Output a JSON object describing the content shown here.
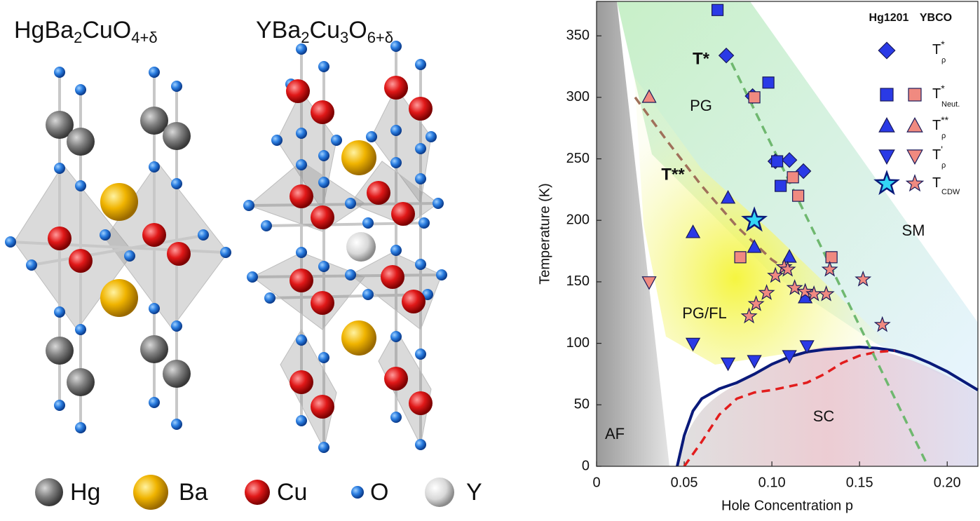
{
  "structures": {
    "formulas": [
      [
        "HgBa",
        "2",
        "CuO",
        "4+δ"
      ],
      [
        "YBa",
        "2",
        "Cu",
        "3",
        "O",
        "6+δ"
      ]
    ],
    "atoms": [
      "Hg",
      "Ba",
      "Cu",
      "O",
      "Y"
    ]
  },
  "chart_data": {
    "type": "scatter",
    "x_label": "Hole Concentration p",
    "y_label": "Temperature (K)",
    "xlim": [
      0,
      0.2175
    ],
    "ylim": [
      0,
      378
    ],
    "xticks": [
      0,
      0.05,
      {
        "value": 0.1,
        "label": "0.10"
      },
      0.15,
      {
        "value": 0.2,
        "label": "0.20"
      }
    ],
    "yticks": [
      0,
      50,
      100,
      150,
      200,
      250,
      300,
      350
    ],
    "samples": [
      {
        "name": "Hg1201",
        "color": "#1616d8"
      },
      {
        "name": "YBCO",
        "color": "#e21d1d"
      }
    ],
    "series": [
      {
        "name": {
          "main": "T",
          "sup": "*",
          "sub": "ρ"
        },
        "marker": "diamond",
        "points": [
          {
            "color": "#2a3ae6",
            "x": [
              0.074,
              0.089,
              0.102,
              0.11,
              0.118
            ],
            "values": [
              334,
              301,
              248,
              249,
              240
            ]
          }
        ]
      },
      {
        "name": {
          "main": "T",
          "sup": "*",
          "sub": "Neut."
        },
        "marker": "square",
        "points": [
          {
            "color": "#2a3ae6",
            "x": [
              0.069,
              0.098,
              0.103,
              0.105
            ],
            "values": [
              371,
              312,
              248,
              228
            ]
          },
          {
            "color": "#f08a80",
            "x": [
              0.082,
              0.09,
              0.112,
              0.115,
              0.134
            ],
            "values": [
              170,
              300,
              235,
              220,
              170
            ]
          }
        ]
      },
      {
        "name": {
          "main": "T",
          "sup": "**",
          "sub": "ρ"
        },
        "marker": "up",
        "points": [
          {
            "color": "#2a3ae6",
            "x": [
              0.055,
              0.075,
              0.09,
              0.11,
              0.119
            ],
            "values": [
              190,
              218,
              178,
              170,
              137
            ]
          },
          {
            "color": "#f08a80",
            "x": [
              0.03
            ],
            "values": [
              300
            ]
          }
        ]
      },
      {
        "name": {
          "main": "T",
          "sup": "'",
          "sub": "ρ"
        },
        "marker": "down",
        "points": [
          {
            "color": "#2a3ae6",
            "x": [
              0.055,
              0.075,
              0.09,
              0.11,
              0.12
            ],
            "values": [
              100,
              84,
              86,
              90,
              98
            ]
          },
          {
            "color": "#f08a80",
            "x": [
              0.03
            ],
            "values": [
              150
            ]
          }
        ]
      },
      {
        "name": {
          "main": "T",
          "sub": "CDW"
        },
        "marker": "star",
        "points": [
          {
            "color": "#33d6f5",
            "x": [
              0.09
            ],
            "values": [
              200
            ]
          },
          {
            "color": "#f08a80",
            "x": [
              0.087,
              0.091,
              0.097,
              0.102,
              0.107,
              0.109,
              0.113,
              0.119,
              0.124,
              0.131,
              0.133,
              0.152,
              0.163
            ],
            "values": [
              122,
              132,
              141,
              155,
              162,
              160,
              145,
              142,
              140,
              140,
              160,
              152,
              115
            ]
          }
        ]
      }
    ],
    "curves": [
      {
        "color": "#0a1a7a",
        "dash": false,
        "x": [
          0.046,
          0.05,
          0.055,
          0.06,
          0.07,
          0.08,
          0.09,
          0.1,
          0.11,
          0.12,
          0.13,
          0.14,
          0.15,
          0.16,
          0.17,
          0.18,
          0.19,
          0.2,
          0.2175
        ],
        "values": [
          0,
          25,
          45,
          55,
          63,
          68,
          75,
          83,
          89,
          93,
          95,
          96,
          97,
          96,
          94,
          90,
          84,
          77,
          62
        ]
      },
      {
        "color": "#e21d1d",
        "dash": true,
        "x": [
          0.05,
          0.06,
          0.07,
          0.08,
          0.09,
          0.1,
          0.11,
          0.12,
          0.13,
          0.14,
          0.15,
          0.16,
          0.17
        ],
        "values": [
          0,
          20,
          42,
          55,
          60,
          62,
          65,
          68,
          75,
          84,
          90,
          93,
          94
        ]
      },
      {
        "color": "#6fb86f",
        "dash": true,
        "x": [
          0.077,
          0.189
        ],
        "values": [
          328,
          0
        ]
      },
      {
        "color": "#a0705a",
        "dash": true,
        "x": [
          0.022,
          0.04,
          0.06,
          0.08,
          0.1,
          0.11
        ],
        "values": [
          300,
          265,
          228,
          195,
          168,
          158
        ]
      }
    ],
    "annotations": [
      "T*",
      "T**",
      "PG",
      "PG/FL",
      "SM",
      "AF",
      "SC"
    ]
  }
}
